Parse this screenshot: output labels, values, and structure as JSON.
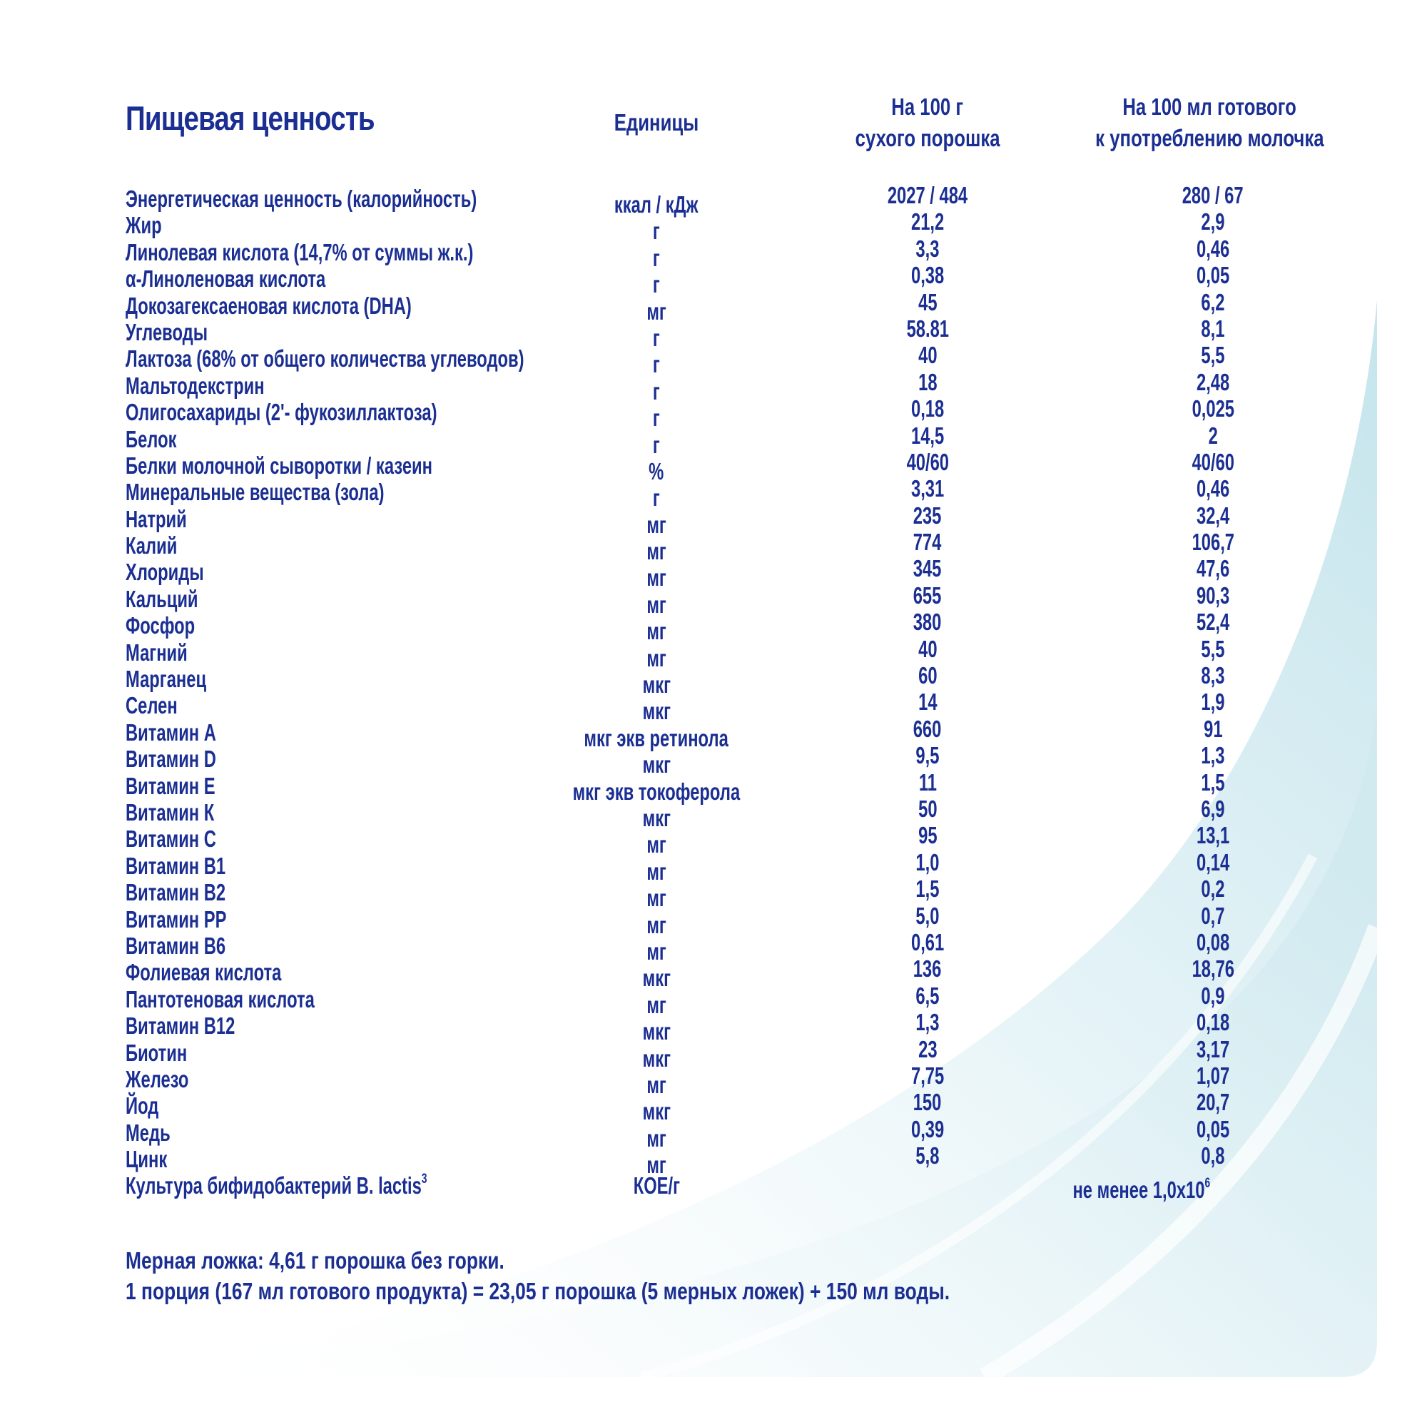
{
  "header": {
    "title": "Пищевая ценность",
    "col_units": "Единицы",
    "col_dry": [
      "На 100 г",
      "сухого порошка"
    ],
    "col_ready": [
      "На 100 мл готового",
      "к употреблению молочка"
    ]
  },
  "rows": [
    {
      "name": "Энергетическая ценность (калорийность)",
      "unit": "ккал / кДж",
      "dry": "2027 / 484",
      "ready": "280 / 67"
    },
    {
      "name": "Жир",
      "unit": "г",
      "dry": "21,2",
      "ready": "2,9"
    },
    {
      "name": "Линолевая кислота (14,7% от суммы ж.к.)",
      "unit": "г",
      "dry": "3,3",
      "ready": "0,46"
    },
    {
      "name": "α-Линоленовая кислота",
      "unit": "г",
      "dry": "0,38",
      "ready": "0,05"
    },
    {
      "name": "Докозагексаеновая кислота (DHA)",
      "unit": "мг",
      "dry": "45",
      "ready": "6,2"
    },
    {
      "name": "Углеводы",
      "unit": "г",
      "dry": "58.81",
      "ready": "8,1"
    },
    {
      "name": "Лактоза (68% от общего количества углеводов)",
      "unit": "г",
      "dry": "40",
      "ready": "5,5"
    },
    {
      "name": "Мальтодекстрин",
      "unit": "г",
      "dry": "18",
      "ready": "2,48"
    },
    {
      "name": "Олигосахариды (2'- фукозиллактоза)",
      "unit": "г",
      "dry": "0,18",
      "ready": "0,025"
    },
    {
      "name": "Белок",
      "unit": "г",
      "dry": "14,5",
      "ready": "2"
    },
    {
      "name": "Белки молочной сыворотки / казеин",
      "unit": "%",
      "dry": "40/60",
      "ready": "40/60"
    },
    {
      "name": "Минеральные вещества (зола)",
      "unit": "г",
      "dry": "3,31",
      "ready": "0,46"
    },
    {
      "name": "Натрий",
      "unit": "мг",
      "dry": "235",
      "ready": "32,4"
    },
    {
      "name": "Калий",
      "unit": "мг",
      "dry": "774",
      "ready": "106,7"
    },
    {
      "name": "Хлориды",
      "unit": "мг",
      "dry": "345",
      "ready": "47,6"
    },
    {
      "name": "Кальций",
      "unit": "мг",
      "dry": "655",
      "ready": "90,3"
    },
    {
      "name": "Фосфор",
      "unit": "мг",
      "dry": "380",
      "ready": "52,4"
    },
    {
      "name": "Магний",
      "unit": "мг",
      "dry": "40",
      "ready": "5,5"
    },
    {
      "name": "Марганец",
      "unit": "мкг",
      "dry": "60",
      "ready": "8,3"
    },
    {
      "name": "Селен",
      "unit": "мкг",
      "dry": "14",
      "ready": "1,9"
    },
    {
      "name": "Витамин А",
      "unit": "мкг экв ретинола",
      "dry": "660",
      "ready": "91"
    },
    {
      "name": "Витамин D",
      "unit": "мкг",
      "dry": "9,5",
      "ready": "1,3"
    },
    {
      "name": "Витамин Е",
      "unit": "мкг экв токоферола",
      "dry": "11",
      "ready": "1,5"
    },
    {
      "name": "Витамин К",
      "unit": "мкг",
      "dry": "50",
      "ready": "6,9"
    },
    {
      "name": "Витамин С",
      "unit": "мг",
      "dry": "95",
      "ready": "13,1"
    },
    {
      "name": "Витамин В1",
      "unit": "мг",
      "dry": "1,0",
      "ready": "0,14"
    },
    {
      "name": "Витамин В2",
      "unit": "мг",
      "dry": "1,5",
      "ready": "0,2"
    },
    {
      "name": "Витамин РР",
      "unit": "мг",
      "dry": "5,0",
      "ready": "0,7"
    },
    {
      "name": "Витамин В6",
      "unit": "мг",
      "dry": "0,61",
      "ready": "0,08"
    },
    {
      "name": "Фолиевая кислота",
      "unit": "мкг",
      "dry": "136",
      "ready": "18,76"
    },
    {
      "name": "Пантотеновая кислота",
      "unit": "мг",
      "dry": "6,5",
      "ready": "0,9"
    },
    {
      "name": "Витамин В12",
      "unit": "мкг",
      "dry": "1,3",
      "ready": "0,18"
    },
    {
      "name": "Биотин",
      "unit": "мкг",
      "dry": "23",
      "ready": "3,17"
    },
    {
      "name": "Железо",
      "unit": "мг",
      "dry": "7,75",
      "ready": "1,07"
    },
    {
      "name": "Йод",
      "unit": "мкг",
      "dry": "150",
      "ready": "20,7"
    },
    {
      "name": "Медь",
      "unit": "мг",
      "dry": "0,39",
      "ready": "0,05"
    },
    {
      "name": "Цинк",
      "unit": "мг",
      "dry": "5,8",
      "ready": "0,8"
    }
  ],
  "culture_row": {
    "name": "Культура бифидобактерий B. lactis",
    "name_sup": "3",
    "unit": "КОЕ/г",
    "value": "не менее 1,0х10",
    "value_sup": "6"
  },
  "notes": [
    "Мерная ложка: 4,61 г порошка без горки.",
    "1 порция (167 мл готового продукта) = 23,05 г порошка (5 мерных ложек) + 150 мл воды."
  ],
  "colors": {
    "text": "#1b2f93",
    "wave_light": "#d6eef3",
    "wave_mid": "#b9dde6"
  }
}
